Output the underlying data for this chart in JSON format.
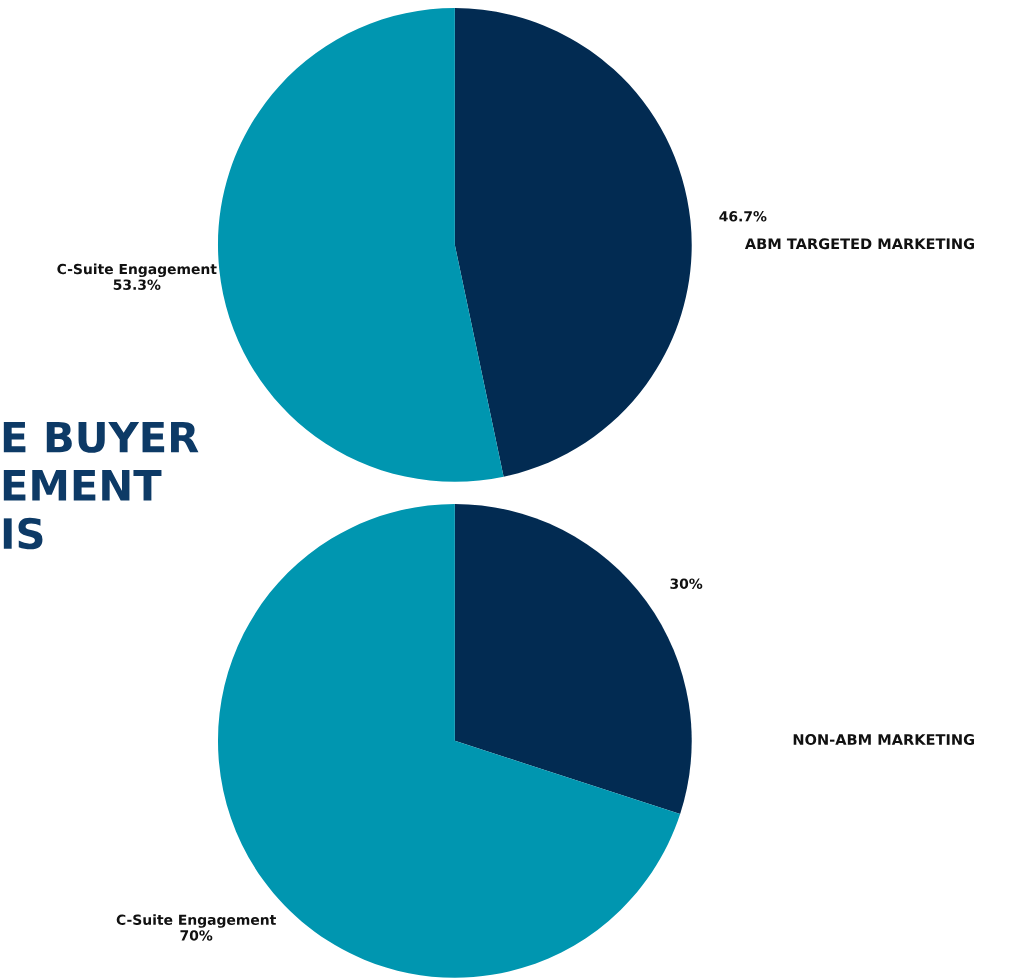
{
  "chart_data": [
    {
      "type": "pie",
      "title": "ABM TARGETED MARKETING",
      "categories": [
        null,
        "C-Suite Engagement"
      ],
      "values": [
        46.7,
        53.3
      ],
      "colors": [
        "#022b52",
        "#0096b0"
      ],
      "value_labels": [
        "46.7%",
        "53.3%"
      ],
      "annotations": [
        "E BUYER\nEMENT\nIS"
      ]
    },
    {
      "type": "pie",
      "title": "NON-ABM MARKETING",
      "categories": [
        null,
        "C-Suite Engagement"
      ],
      "values": [
        30,
        70
      ],
      "colors": [
        "#022b52",
        "#0096b0"
      ],
      "value_labels": [
        "30%",
        "70%"
      ]
    }
  ]
}
